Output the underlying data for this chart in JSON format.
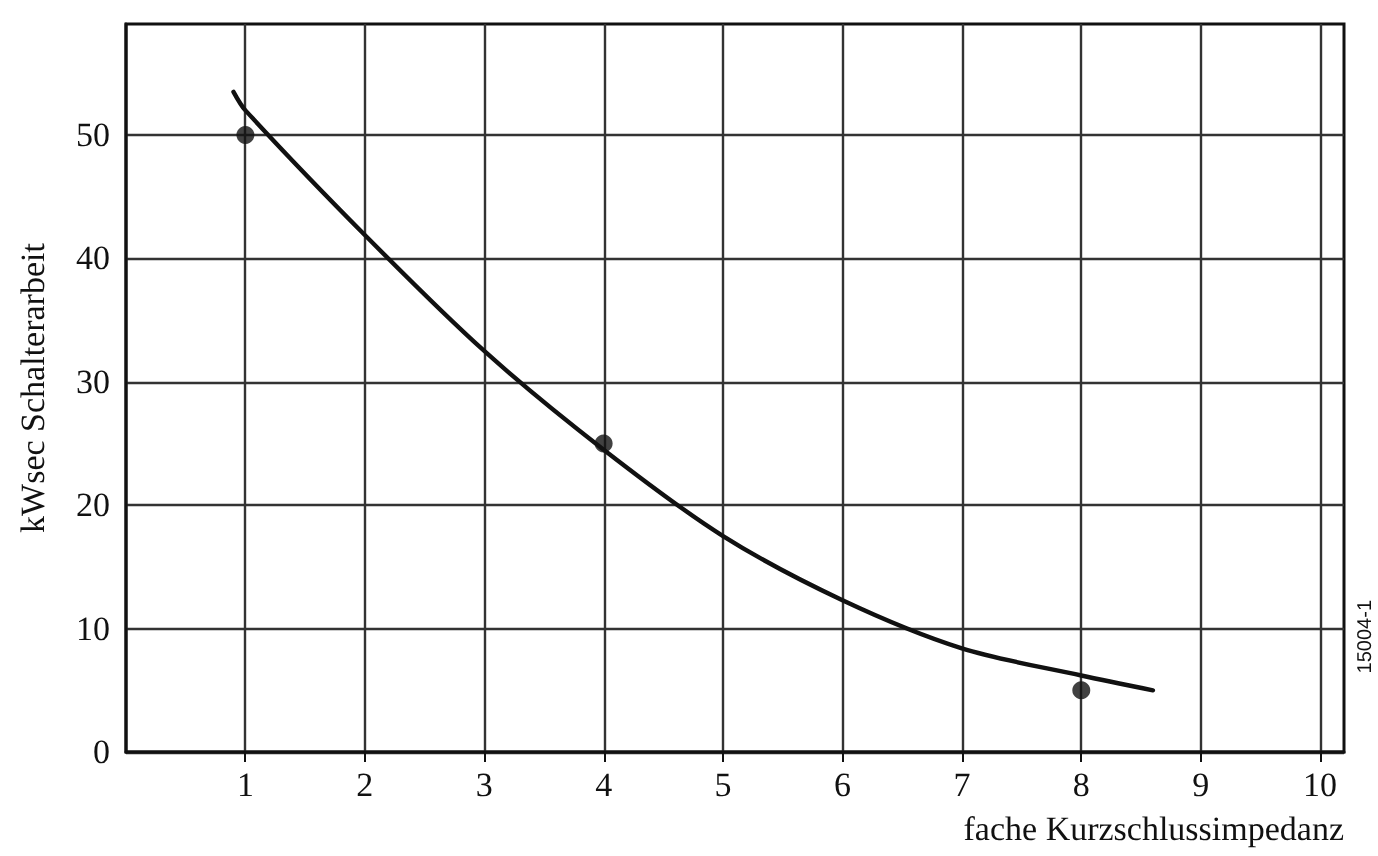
{
  "chart_data": {
    "type": "line",
    "xlabel": "fache Kurzschlussimpedanz",
    "ylabel": "kWsec Schalterarbeit",
    "xlim": [
      0,
      10.2
    ],
    "xticks": [
      1,
      2,
      3,
      4,
      5,
      6,
      7,
      8,
      9,
      10
    ],
    "ylim": [
      0,
      59
    ],
    "yticks": [
      0,
      10,
      20,
      30,
      40,
      50
    ],
    "grid": true,
    "line_style": "solid",
    "annotations": [
      "15004-1"
    ],
    "series": [
      {
        "marker": "none",
        "color": "#111111",
        "x": [
          0.9,
          1,
          2,
          3,
          4,
          5,
          6,
          7,
          8,
          8.6
        ],
        "values": [
          53.5,
          52,
          41.9,
          32.5,
          24.5,
          17.5,
          12.3,
          8.4,
          6.2,
          5
        ]
      },
      {
        "type": "scatter",
        "marker": "circle",
        "color": "#111111",
        "x": [
          1,
          4,
          8
        ],
        "values": [
          50,
          25,
          5
        ]
      }
    ]
  }
}
